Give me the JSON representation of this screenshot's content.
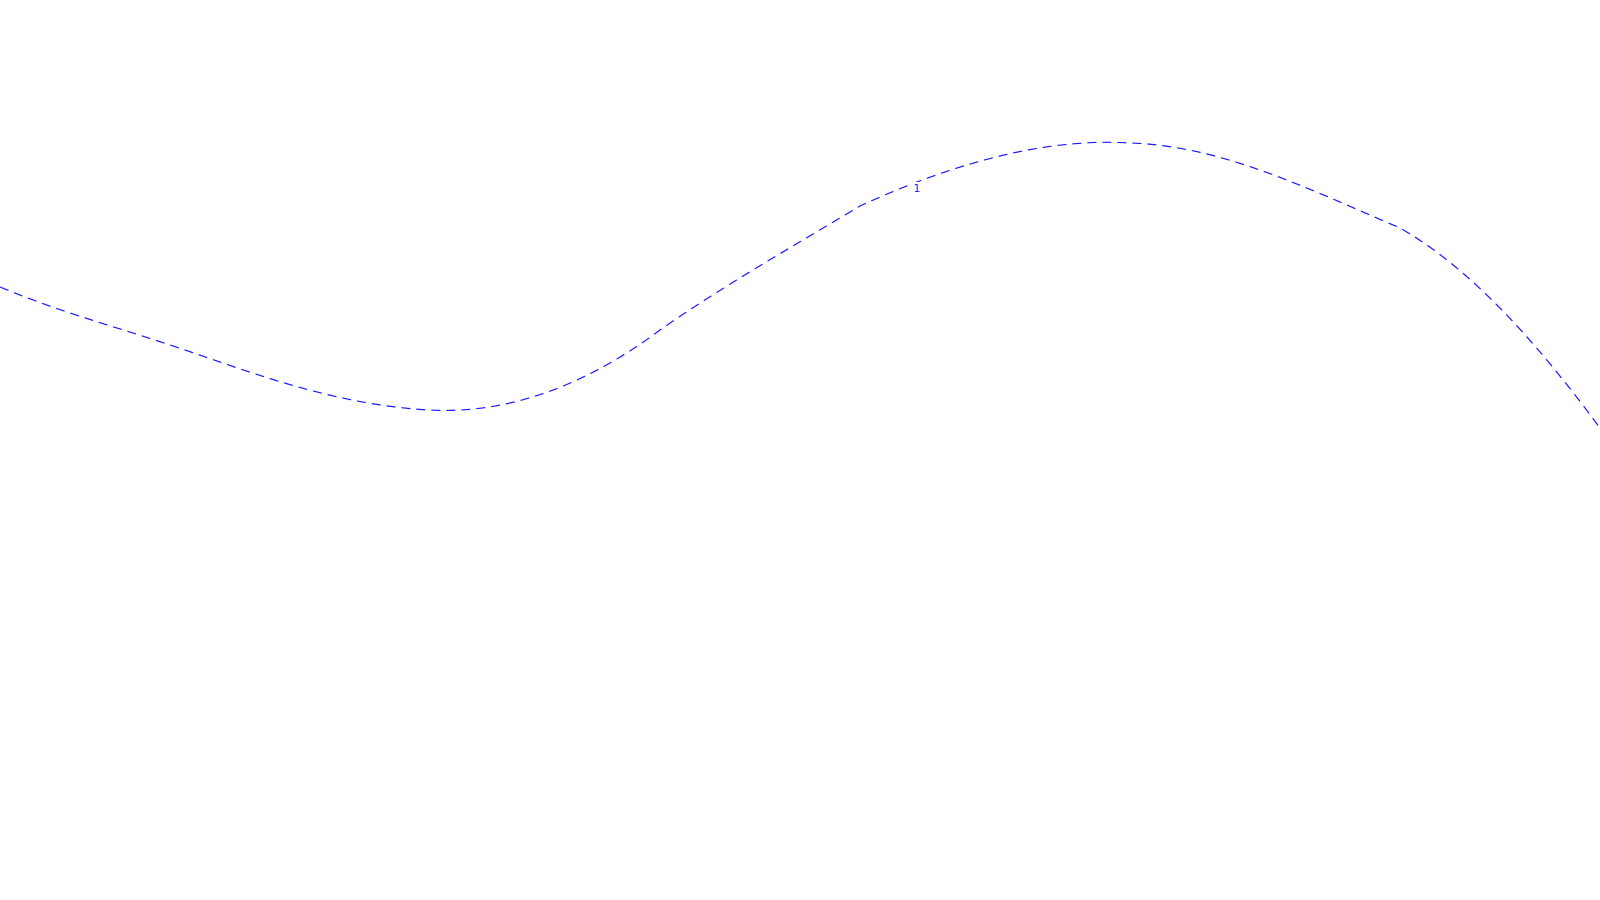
{
  "background_color": "#ffffff",
  "line_color": "#1a1aff",
  "line_style": "dashed",
  "contour": {
    "label": "1"
  }
}
